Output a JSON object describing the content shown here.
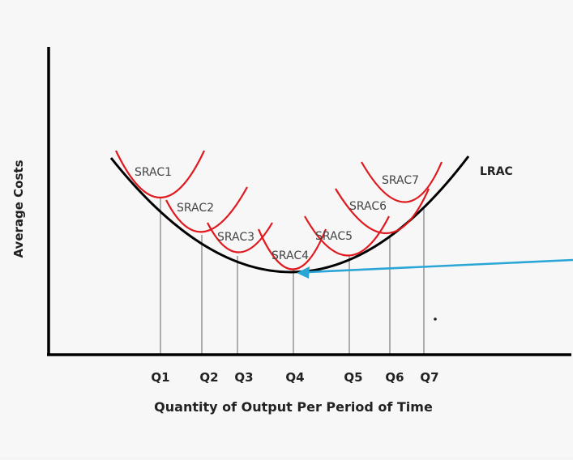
{
  "diagram": {
    "y_axis_label": "Average Costs",
    "x_axis_label": "Quantity of Output Per Period of Time",
    "lrac_label": "LRAC",
    "quantities": [
      "Q1",
      "Q2",
      "Q3",
      "Q4",
      "Q5",
      "Q6",
      "Q7"
    ],
    "srac_labels": [
      "SRAC1",
      "SRAC2",
      "SRAC3",
      "SRAC4",
      "SRAC5",
      "SRAC6",
      "SRAC7"
    ],
    "colors": {
      "lrac": "#000000",
      "srac": "#e0191e",
      "guides": "#9a9a9a",
      "arrow": "#2aa6d6",
      "axes": "#000000"
    }
  }
}
